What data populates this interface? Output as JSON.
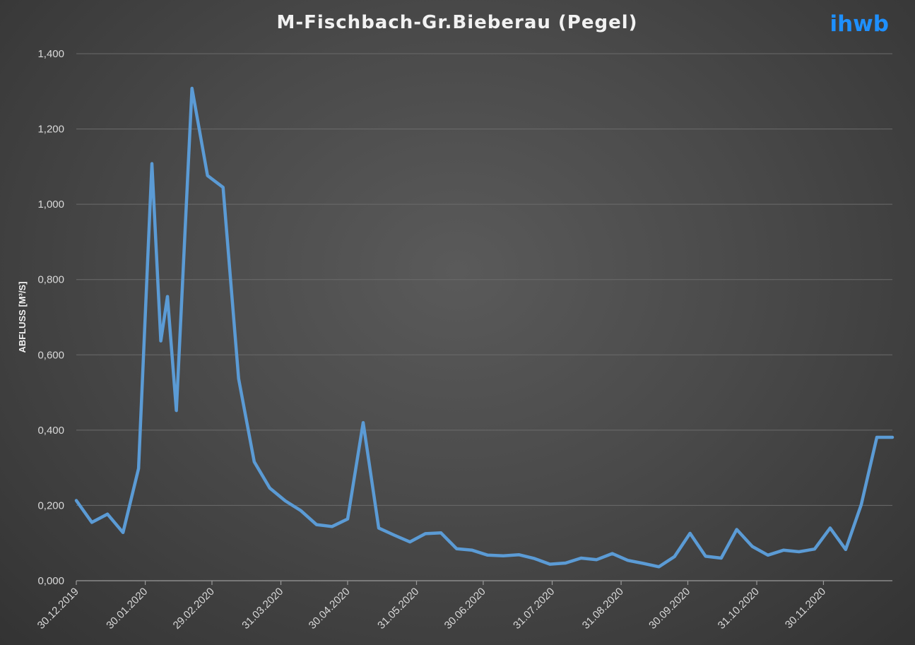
{
  "chart_data": {
    "type": "line",
    "title": "M-Fischbach-Gr.Bieberau (Pegel)",
    "logo": "ihwb",
    "xlabel": "",
    "ylabel": "ABFLUSS [M³/S]",
    "ylim": [
      0,
      1.4
    ],
    "yticks": [
      0,
      0.2,
      0.4,
      0.6,
      0.8,
      1.0,
      1.2,
      1.4
    ],
    "ytick_labels": [
      "0,000",
      "0,200",
      "0,400",
      "0,600",
      "0,800",
      "1,000",
      "1,200",
      "1,400"
    ],
    "xlim": [
      "2019-12-30",
      "2020-12-31"
    ],
    "xticks": [
      "2019-12-30",
      "2020-01-30",
      "2020-02-29",
      "2020-03-31",
      "2020-04-30",
      "2020-05-31",
      "2020-06-30",
      "2020-07-31",
      "2020-08-31",
      "2020-09-30",
      "2020-10-31",
      "2020-11-30"
    ],
    "xtick_labels": [
      "30.12.2019",
      "30.01.2020",
      "29.02.2020",
      "31.03.2020",
      "30.04.2020",
      "31.05.2020",
      "30.06.2020",
      "31.07.2020",
      "31.08.2020",
      "30.09.2020",
      "31.10.2020",
      "30.11.2020"
    ],
    "grid": true,
    "colors": {
      "series": "#5b9bd5",
      "logo": "#1e90ff"
    },
    "series": [
      {
        "x": [
          "2019-12-30",
          "2020-01-06",
          "2020-01-13",
          "2020-01-20",
          "2020-01-27",
          "2020-02-02",
          "2020-02-06",
          "2020-02-09",
          "2020-02-13",
          "2020-02-20",
          "2020-02-27",
          "2020-03-05",
          "2020-03-12",
          "2020-03-19",
          "2020-03-26",
          "2020-04-02",
          "2020-04-09",
          "2020-04-16",
          "2020-04-23",
          "2020-04-30",
          "2020-05-07",
          "2020-05-14",
          "2020-05-21",
          "2020-05-28",
          "2020-06-04",
          "2020-06-11",
          "2020-06-18",
          "2020-06-25",
          "2020-07-02",
          "2020-07-09",
          "2020-07-16",
          "2020-07-23",
          "2020-07-30",
          "2020-08-06",
          "2020-08-13",
          "2020-08-20",
          "2020-08-27",
          "2020-09-03",
          "2020-09-10",
          "2020-09-17",
          "2020-09-24",
          "2020-10-01",
          "2020-10-08",
          "2020-10-15",
          "2020-10-22",
          "2020-10-29",
          "2020-11-05",
          "2020-11-12",
          "2020-11-19",
          "2020-11-26",
          "2020-12-03",
          "2020-12-10",
          "2020-12-17",
          "2020-12-24",
          "2020-12-31"
        ],
        "y": [
          0.213,
          0.155,
          0.177,
          0.128,
          0.298,
          1.108,
          0.637,
          0.755,
          0.452,
          1.308,
          1.076,
          1.045,
          0.537,
          0.316,
          0.246,
          0.212,
          0.186,
          0.149,
          0.144,
          0.164,
          0.42,
          0.14,
          0.121,
          0.103,
          0.125,
          0.127,
          0.085,
          0.081,
          0.068,
          0.066,
          0.069,
          0.059,
          0.044,
          0.047,
          0.06,
          0.056,
          0.072,
          0.054,
          0.046,
          0.037,
          0.064,
          0.126,
          0.065,
          0.06,
          0.136,
          0.091,
          0.068,
          0.081,
          0.077,
          0.084,
          0.14,
          0.083,
          0.202,
          0.381,
          0.381
        ]
      }
    ]
  }
}
